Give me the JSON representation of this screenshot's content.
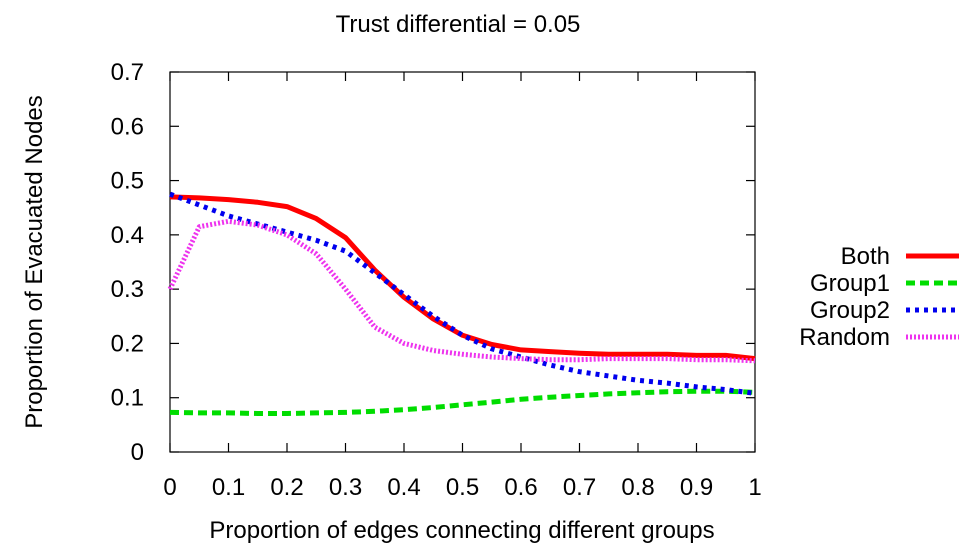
{
  "chart_data": {
    "type": "line",
    "title": "Trust differential = 0.05",
    "xlabel": "Proportion of edges connecting different groups",
    "ylabel": "Proportion of Evacuated Nodes",
    "xlim": [
      0,
      1
    ],
    "ylim": [
      0,
      0.7
    ],
    "x_ticks": [
      "0",
      "0.1",
      "0.2",
      "0.3",
      "0.4",
      "0.5",
      "0.6",
      "0.7",
      "0.8",
      "0.9",
      "1"
    ],
    "y_ticks": [
      "0",
      "0.1",
      "0.2",
      "0.3",
      "0.4",
      "0.5",
      "0.6",
      "0.7"
    ],
    "grid": false,
    "legend_position": "right",
    "x": [
      0,
      0.05,
      0.1,
      0.15,
      0.2,
      0.25,
      0.3,
      0.35,
      0.4,
      0.45,
      0.5,
      0.55,
      0.6,
      0.65,
      0.7,
      0.75,
      0.8,
      0.85,
      0.9,
      0.95,
      1
    ],
    "series": [
      {
        "name": "Both",
        "color": "#ff0000",
        "dash": "solid",
        "values": [
          0.47,
          0.468,
          0.465,
          0.46,
          0.452,
          0.43,
          0.395,
          0.335,
          0.285,
          0.245,
          0.215,
          0.198,
          0.188,
          0.185,
          0.182,
          0.18,
          0.18,
          0.18,
          0.178,
          0.178,
          0.172
        ]
      },
      {
        "name": "Group1",
        "color": "#00dd00",
        "dash": "dashed",
        "values": [
          0.073,
          0.072,
          0.072,
          0.071,
          0.071,
          0.072,
          0.073,
          0.075,
          0.078,
          0.082,
          0.087,
          0.092,
          0.097,
          0.101,
          0.104,
          0.107,
          0.109,
          0.111,
          0.112,
          0.112,
          0.11
        ]
      },
      {
        "name": "Group2",
        "color": "#0000ee",
        "dash": "dotted",
        "values": [
          0.475,
          0.455,
          0.435,
          0.42,
          0.405,
          0.39,
          0.37,
          0.33,
          0.29,
          0.25,
          0.215,
          0.19,
          0.175,
          0.16,
          0.148,
          0.14,
          0.132,
          0.127,
          0.12,
          0.115,
          0.108
        ]
      },
      {
        "name": "Random",
        "color": "#ee33ee",
        "dash": "densely-dotted",
        "values": [
          0.3,
          0.415,
          0.425,
          0.418,
          0.4,
          0.365,
          0.3,
          0.23,
          0.2,
          0.187,
          0.18,
          0.175,
          0.172,
          0.17,
          0.17,
          0.172,
          0.172,
          0.172,
          0.17,
          0.17,
          0.168
        ]
      }
    ]
  }
}
